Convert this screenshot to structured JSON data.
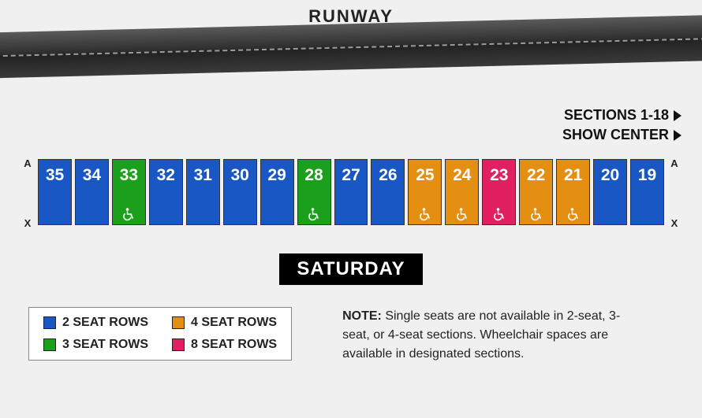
{
  "header": {
    "runway_label": "RUNWAY"
  },
  "nav": {
    "link1": "SECTIONS 1-18",
    "link2": "SHOW CENTER"
  },
  "row_markers": {
    "top": "A",
    "bottom": "X"
  },
  "day_label": "SATURDAY",
  "colors": {
    "two_seat": "#1958c4",
    "three_seat": "#1ba01b",
    "four_seat": "#e48f12",
    "eight_seat": "#e02060",
    "background": "#f0f0f0",
    "badge_bg": "#000000",
    "text": "#222222"
  },
  "sections": [
    {
      "num": "35",
      "cls": "blue",
      "wheelchair": false
    },
    {
      "num": "34",
      "cls": "blue",
      "wheelchair": false
    },
    {
      "num": "33",
      "cls": "green",
      "wheelchair": true
    },
    {
      "num": "32",
      "cls": "blue",
      "wheelchair": false
    },
    {
      "num": "31",
      "cls": "blue",
      "wheelchair": false
    },
    {
      "num": "30",
      "cls": "blue",
      "wheelchair": false
    },
    {
      "num": "29",
      "cls": "blue",
      "wheelchair": false
    },
    {
      "num": "28",
      "cls": "green",
      "wheelchair": true
    },
    {
      "num": "27",
      "cls": "blue",
      "wheelchair": false
    },
    {
      "num": "26",
      "cls": "blue",
      "wheelchair": false
    },
    {
      "num": "25",
      "cls": "orange",
      "wheelchair": true
    },
    {
      "num": "24",
      "cls": "orange",
      "wheelchair": true
    },
    {
      "num": "23",
      "cls": "red",
      "wheelchair": true
    },
    {
      "num": "22",
      "cls": "orange",
      "wheelchair": true
    },
    {
      "num": "21",
      "cls": "orange",
      "wheelchair": true
    },
    {
      "num": "20",
      "cls": "blue",
      "wheelchair": false
    },
    {
      "num": "19",
      "cls": "blue",
      "wheelchair": false
    }
  ],
  "legend": [
    {
      "label": "2 SEAT ROWS",
      "color": "#1958c4"
    },
    {
      "label": "4 SEAT ROWS",
      "color": "#e48f12"
    },
    {
      "label": "3 SEAT ROWS",
      "color": "#1ba01b"
    },
    {
      "label": "8 SEAT ROWS",
      "color": "#e02060"
    }
  ],
  "note": {
    "prefix": "NOTE:",
    "body": "Single seats are not available in 2-seat, 3-seat, or 4-seat sections. Wheelchair spaces are available in designated sections."
  }
}
